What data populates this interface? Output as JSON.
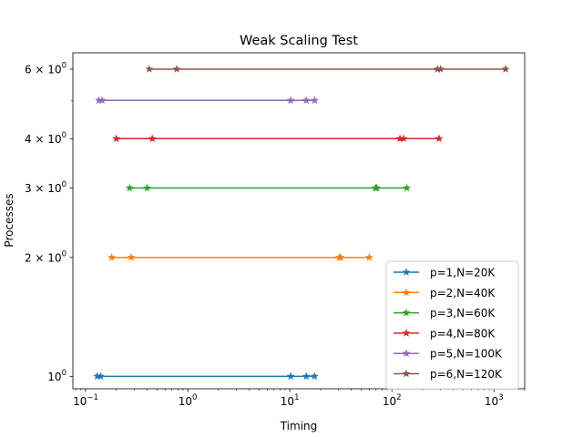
{
  "chart_data": {
    "type": "line",
    "title": "Weak Scaling Test",
    "xlabel": "Timing",
    "ylabel": "Processes",
    "xscale": "log",
    "yscale": "log",
    "xlim": [
      0.075,
      2000
    ],
    "ylim": [
      0.93,
      6.6
    ],
    "grid": false,
    "legend_position": "lower-right",
    "x_ticks": [
      {
        "value": 0.1,
        "base": "10",
        "exp": "−1"
      },
      {
        "value": 1,
        "base": "10",
        "exp": "0"
      },
      {
        "value": 10,
        "base": "10",
        "exp": "1"
      },
      {
        "value": 100,
        "base": "10",
        "exp": "2"
      },
      {
        "value": 1000,
        "base": "10",
        "exp": "3"
      }
    ],
    "y_ticks": [
      {
        "value": 1,
        "base": "10",
        "exp": "0",
        "mant": ""
      },
      {
        "value": 2,
        "base": "10",
        "exp": "0",
        "mant": "2 × "
      },
      {
        "value": 3,
        "base": "10",
        "exp": "0",
        "mant": "3 × "
      },
      {
        "value": 4,
        "base": "10",
        "exp": "0",
        "mant": "4 × "
      },
      {
        "value": 6,
        "base": "10",
        "exp": "0",
        "mant": "6 × "
      }
    ],
    "series": [
      {
        "name": "p=1,N=20K",
        "color": "#1f77b4",
        "y": 1,
        "x": [
          0.13,
          0.14,
          10.2,
          14.5,
          17.5
        ]
      },
      {
        "name": "p=2,N=40K",
        "color": "#ff7f0e",
        "y": 2,
        "x": [
          0.18,
          0.28,
          30.5,
          31.5,
          60
        ]
      },
      {
        "name": "p=3,N=60K",
        "color": "#2ca02c",
        "y": 3,
        "x": [
          0.27,
          0.4,
          69,
          71,
          140
        ]
      },
      {
        "name": "p=4,N=80K",
        "color": "#d62728",
        "y": 4,
        "x": [
          0.2,
          0.45,
          120,
          130,
          290
        ]
      },
      {
        "name": "p=5,N=100K",
        "color": "#9467bd",
        "y": 5,
        "x": [
          0.135,
          0.145,
          10.2,
          14.5,
          17.5
        ]
      },
      {
        "name": "p=6,N=120K",
        "color": "#8c564b",
        "y": 6,
        "x": [
          0.42,
          0.78,
          280,
          300,
          1300
        ]
      }
    ]
  }
}
